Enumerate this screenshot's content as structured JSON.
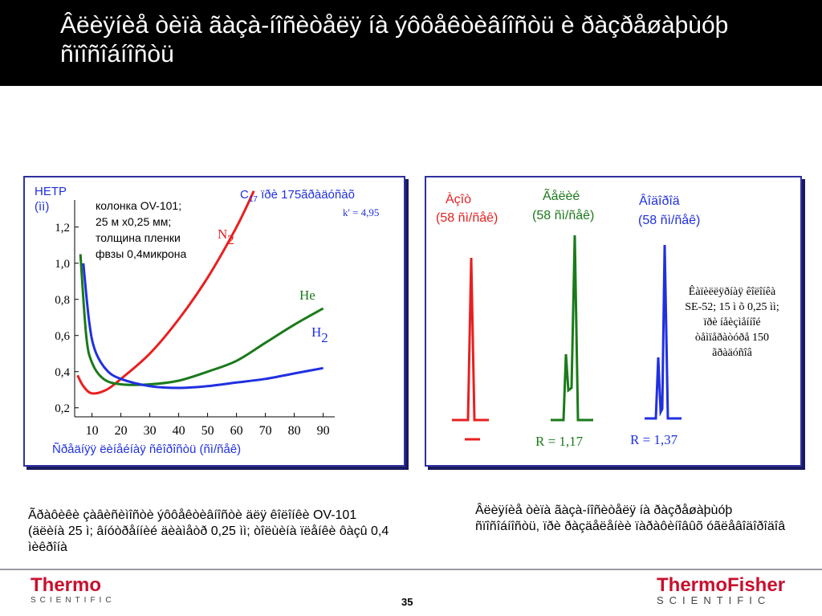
{
  "slide": {
    "title": "Âëèÿíèå òèïà ãàçà-íîñèòåëÿ íà ýôôåêòèâíîñòü è ðàçðåøàþùóþ ñïîñîáíîñòü",
    "page_number": "35"
  },
  "colors": {
    "red": "#e82020",
    "green": "#1a7a1a",
    "blue": "#2030e0",
    "panel_border": "#3030a0",
    "brand": "#c8102e"
  },
  "chart_data": [
    {
      "type": "line",
      "ylabel": "HETP (ìì)",
      "xlabel": "Ñðåäíÿÿ ëèíåéíàÿ ñêîðîñòü (ñì/ñåê)",
      "x_ticks": [
        10,
        20,
        30,
        40,
        50,
        60,
        70,
        80,
        90
      ],
      "y_ticks": [
        "1,2",
        "1,0",
        "0,8",
        "0,6",
        "0,4",
        "0,2"
      ],
      "y_tick_values": [
        1.2,
        1.0,
        0.8,
        0.6,
        0.4,
        0.2
      ],
      "xlim": [
        4,
        94
      ],
      "ylim": [
        0.15,
        1.35
      ],
      "annotation_column": [
        "колонка OV-101;",
        "25 м х0,25 мм;",
        "толщина пленки",
        "фвзы 0,4микрона"
      ],
      "annotation_compound": {
        "label": "C",
        "sub": "17",
        "rest": " ïðè 175ãðàäóñàõ"
      },
      "annotation_k": "k' = 4,95",
      "series": [
        {
          "name": "N",
          "sub": "2",
          "color": "#e82020",
          "points": [
            [
              5,
              0.38
            ],
            [
              7,
              0.32
            ],
            [
              10,
              0.28
            ],
            [
              15,
              0.3
            ],
            [
              20,
              0.36
            ],
            [
              30,
              0.5
            ],
            [
              40,
              0.69
            ],
            [
              50,
              0.92
            ],
            [
              60,
              1.2
            ],
            [
              66,
              1.4
            ]
          ]
        },
        {
          "name": "He",
          "sub": "",
          "color": "#1a7a1a",
          "points": [
            [
              6,
              1.05
            ],
            [
              8,
              0.6
            ],
            [
              10,
              0.45
            ],
            [
              14,
              0.36
            ],
            [
              20,
              0.33
            ],
            [
              30,
              0.33
            ],
            [
              40,
              0.35
            ],
            [
              50,
              0.4
            ],
            [
              60,
              0.46
            ],
            [
              70,
              0.56
            ],
            [
              80,
              0.66
            ],
            [
              90,
              0.75
            ]
          ]
        },
        {
          "name": "H",
          "sub": "2",
          "color": "#2030e0",
          "points": [
            [
              7,
              1.0
            ],
            [
              9,
              0.68
            ],
            [
              11,
              0.52
            ],
            [
              15,
              0.41
            ],
            [
              20,
              0.36
            ],
            [
              30,
              0.32
            ],
            [
              40,
              0.31
            ],
            [
              50,
              0.32
            ],
            [
              60,
              0.34
            ],
            [
              70,
              0.36
            ],
            [
              80,
              0.39
            ],
            [
              90,
              0.42
            ]
          ]
        }
      ]
    },
    {
      "type": "chromatogram",
      "peaks": [
        {
          "gas_label": "Àçîò",
          "speed": "(58 ñì/ñåê)",
          "color": "#e82020",
          "resolution": ""
        },
        {
          "gas_label": "Ãåëèé",
          "speed": "(58 ñì/ñåê)",
          "color": "#1a7a1a",
          "resolution": "R = 1,17"
        },
        {
          "gas_label": "Âîäîðîä",
          "speed": "(58 ñì/ñåê)",
          "color": "#2030e0",
          "resolution": "R = 1,37"
        }
      ],
      "note": [
        "Êàïèëëÿðíàÿ êîëîíêà",
        "SE-52; 15 ì õ 0,25 ìì;",
        "ïðè íåèçìåííîé",
        "òåìïåðàòóðå 150",
        "ãðàäóñîâ"
      ]
    }
  ],
  "captions": {
    "left": "Ãðàôèêè çàâèñèìîñòè ýôôåêòèâíîñòè äëÿ êîëîíêè OV-101 (äëèíà 25 ì; âíóòðåííèé äèàìåòð 0,25 ìì; òîëùèíà ïëåíêè ôàçû 0,4 ìèêðîíà",
    "right": "Âëèÿíèå òèïà ãàçà-íîñèòåëÿ íà ðàçðåøàþùóþ ñïîñîáíîñòü, ïðè ðàçäåëåíèè ïàðàôèíîâûõ óãëåâîäîðîäîâ"
  },
  "logos": {
    "left_main": "Thermo",
    "left_sub": "SCIENTIFIC",
    "right_main": "ThermoFisher",
    "right_sub": "SCIENTIFIC"
  }
}
